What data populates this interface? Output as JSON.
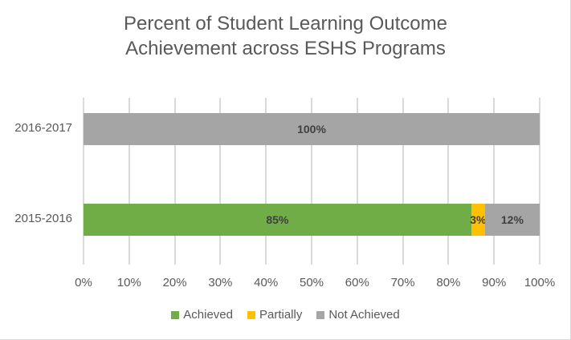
{
  "chart_data": {
    "type": "bar",
    "orientation": "horizontal",
    "stacked": "100%",
    "title": "Percent of Student Learning Outcome Achievement across ESHS Programs",
    "title_lines": [
      "Percent of Student Learning Outcome",
      "Achievement across ESHS Programs"
    ],
    "categories": [
      "2016-2017",
      "2015-2016"
    ],
    "series": [
      {
        "name": "Achieved",
        "color": "#70ad47",
        "values": [
          0,
          85
        ],
        "labels": [
          "",
          "85%"
        ]
      },
      {
        "name": "Partially",
        "color": "#ffc000",
        "values": [
          0,
          3
        ],
        "labels": [
          "",
          "3%"
        ]
      },
      {
        "name": "Not Achieved",
        "color": "#a5a5a5",
        "values": [
          100,
          12
        ],
        "labels": [
          "100%",
          "12%"
        ]
      }
    ],
    "xlabel": "",
    "ylabel": "",
    "xlim": [
      0,
      100
    ],
    "x_ticks": [
      "0%",
      "10%",
      "20%",
      "30%",
      "40%",
      "50%",
      "60%",
      "70%",
      "80%",
      "90%",
      "100%"
    ],
    "grid": true,
    "legend_position": "bottom"
  }
}
